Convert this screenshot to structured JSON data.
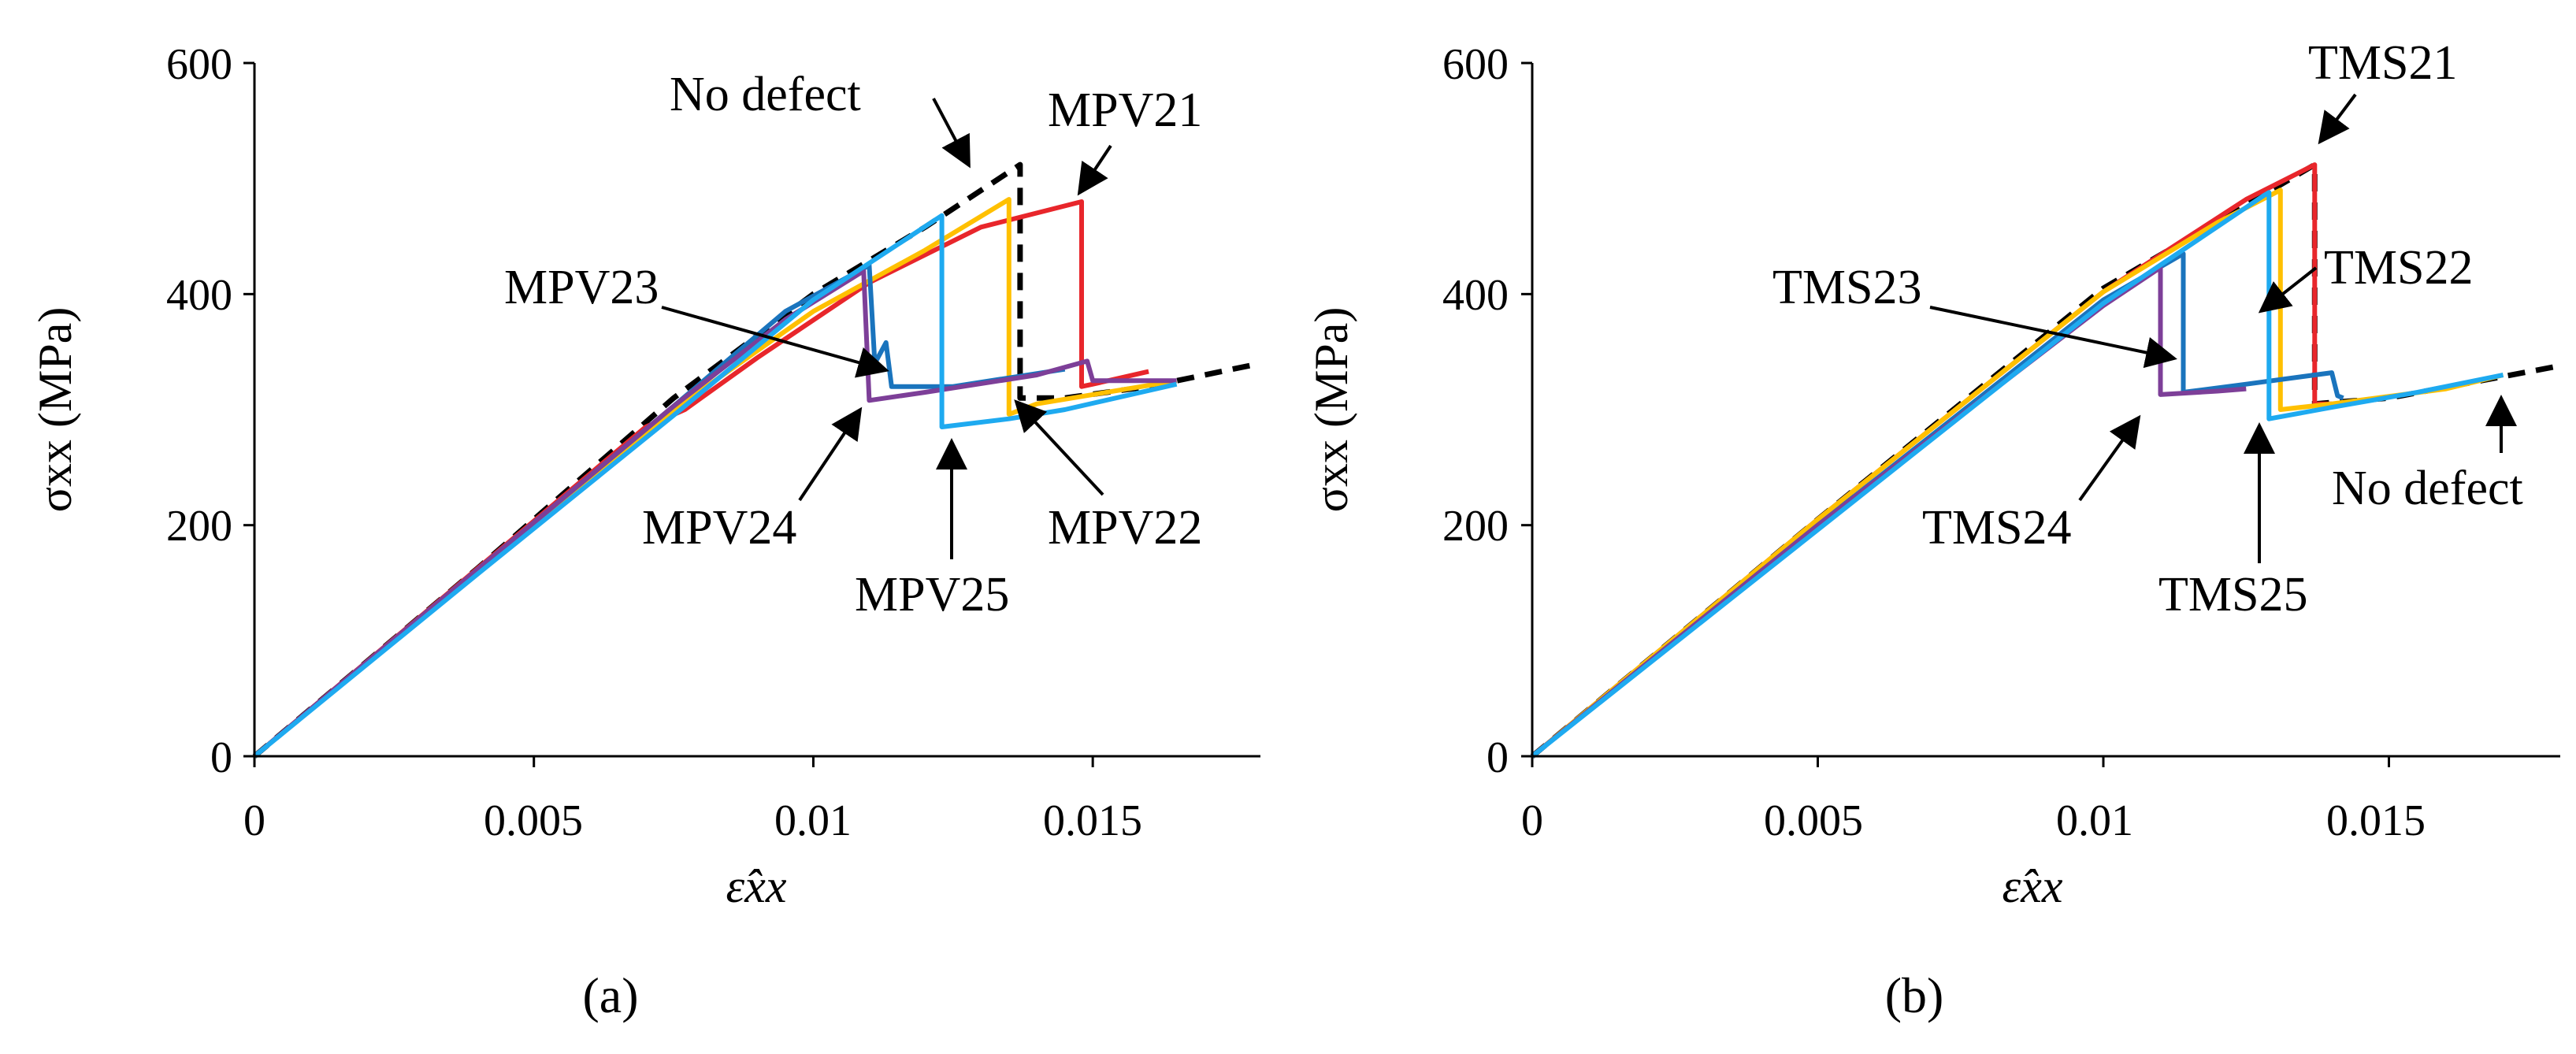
{
  "chart_data": [
    {
      "type": "line",
      "panel": "a",
      "caption": "(a)",
      "xlabel": "ε̂xx",
      "ylabel": "σxx (MPa)",
      "xlim": [
        0,
        0.018
      ],
      "ylim": [
        0,
        600
      ],
      "xticks": [
        "0",
        "0.005",
        "0.01",
        "0.015"
      ],
      "yticks": [
        "0",
        "200",
        "400",
        "600"
      ],
      "series": [
        {
          "name": "No defect",
          "color": "#000000",
          "dashed": true,
          "x": [
            0,
            0.004,
            0.0075,
            0.01,
            0.012,
            0.0137,
            0.0137,
            0.0145,
            0.016,
            0.018
          ],
          "y": [
            0,
            163,
            310,
            400,
            458,
            512,
            310,
            310,
            320,
            340
          ]
        },
        {
          "name": "MPV21",
          "color": "#e8262b",
          "dashed": false,
          "x": [
            0,
            0.007,
            0.0077,
            0.009,
            0.011,
            0.013,
            0.0148,
            0.0148,
            0.015,
            0.016
          ],
          "y": [
            0,
            285,
            300,
            345,
            410,
            458,
            480,
            320,
            322,
            333
          ]
        },
        {
          "name": "MPV22",
          "color": "#ffc000",
          "dashed": false,
          "x": [
            0,
            0.004,
            0.0075,
            0.01,
            0.012,
            0.0135,
            0.0135,
            0.014,
            0.015,
            0.0165
          ],
          "y": [
            0,
            160,
            300,
            385,
            438,
            482,
            296,
            305,
            313,
            325
          ]
        },
        {
          "name": "MPV23",
          "color": "#1a74bd",
          "dashed": false,
          "x": [
            0,
            0.004,
            0.0075,
            0.0095,
            0.011,
            0.0111,
            0.0113,
            0.0114,
            0.0125,
            0.0145
          ],
          "y": [
            0,
            162,
            303,
            385,
            425,
            340,
            358,
            320,
            320,
            335
          ]
        },
        {
          "name": "MPV24",
          "color": "#7d3f98",
          "dashed": false,
          "x": [
            0,
            0.004,
            0.0075,
            0.0095,
            0.0109,
            0.011,
            0.012,
            0.014,
            0.0149,
            0.015,
            0.0165
          ],
          "y": [
            0,
            162,
            303,
            378,
            420,
            308,
            315,
            330,
            342,
            325,
            325
          ]
        },
        {
          "name": "MPV25",
          "color": "#1eaaf0",
          "dashed": false,
          "x": [
            0,
            0.004,
            0.0075,
            0.01,
            0.0123,
            0.0123,
            0.0135,
            0.0145,
            0.0165
          ],
          "y": [
            0,
            158,
            295,
            395,
            468,
            285,
            292,
            300,
            322
          ]
        }
      ],
      "annotations": [
        "No defect",
        "MPV21",
        "MPV23",
        "MPV24",
        "MPV25",
        "MPV22"
      ]
    },
    {
      "type": "line",
      "panel": "b",
      "caption": "(b)",
      "xlabel": "ε̂xx",
      "ylabel": "σxx (MPa)",
      "xlim": [
        0,
        0.018
      ],
      "ylim": [
        0,
        600
      ],
      "xticks": [
        "0",
        "0.005",
        "0.01",
        "0.015"
      ],
      "yticks": [
        "0",
        "200",
        "400",
        "600"
      ],
      "series": [
        {
          "name": "No defect",
          "color": "#000000",
          "dashed": true,
          "x": [
            0,
            0.005,
            0.01,
            0.0137,
            0.0137,
            0.015,
            0.018
          ],
          "y": [
            0,
            205,
            405,
            512,
            305,
            310,
            338
          ]
        },
        {
          "name": "TMS21",
          "color": "#e8262b",
          "dashed": false,
          "x": [
            0,
            0.005,
            0.01,
            0.0125,
            0.0137,
            0.0137,
            0.014
          ],
          "y": [
            0,
            205,
            402,
            482,
            512,
            305,
            305
          ]
        },
        {
          "name": "TMS22",
          "color": "#ffc000",
          "dashed": false,
          "x": [
            0,
            0.005,
            0.01,
            0.012,
            0.0131,
            0.0131,
            0.014,
            0.016,
            0.017
          ],
          "y": [
            0,
            205,
            402,
            462,
            490,
            300,
            305,
            318,
            330
          ]
        },
        {
          "name": "TMS23",
          "color": "#1a74bd",
          "dashed": false,
          "x": [
            0,
            0.005,
            0.01,
            0.0114,
            0.0114,
            0.0125,
            0.014,
            0.0141,
            0.0142
          ],
          "y": [
            0,
            200,
            395,
            435,
            315,
            322,
            332,
            312,
            310
          ]
        },
        {
          "name": "TMS24",
          "color": "#7d3f98",
          "dashed": false,
          "x": [
            0,
            0.005,
            0.01,
            0.011,
            0.011,
            0.012,
            0.0125
          ],
          "y": [
            0,
            200,
            390,
            423,
            313,
            316,
            318
          ]
        },
        {
          "name": "TMS25",
          "color": "#1eaaf0",
          "dashed": false,
          "x": [
            0,
            0.005,
            0.01,
            0.0128,
            0.0129,
            0.0129,
            0.014,
            0.0155,
            0.017
          ],
          "y": [
            0,
            196,
            392,
            485,
            488,
            292,
            302,
            315,
            330
          ]
        }
      ],
      "annotations": [
        "TMS21",
        "TMS22",
        "TMS23",
        "TMS24",
        "TMS25",
        "No defect"
      ]
    }
  ]
}
